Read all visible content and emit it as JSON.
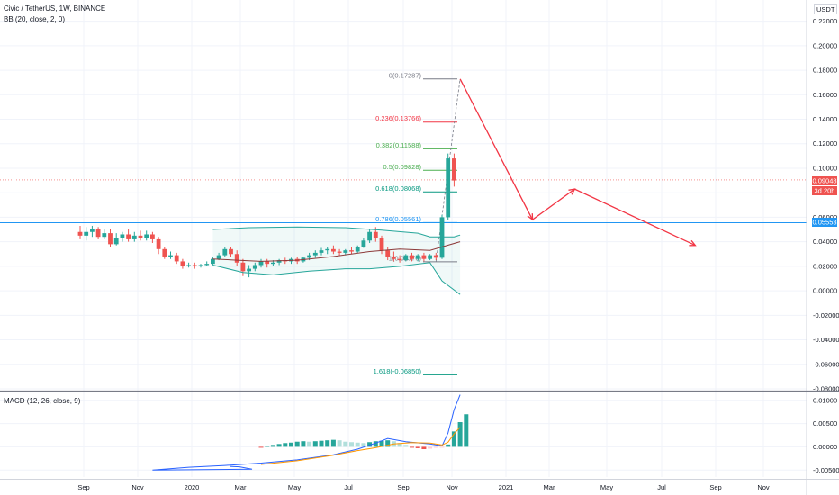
{
  "header": {
    "title": "Civic / TetherUS, 1W, BINANCE",
    "indicator": "BB (20, close, 2, 0)",
    "macd": "MACD (12, 26, close, 9)",
    "currency": "USDT"
  },
  "price_badges": {
    "current": "0.09048",
    "countdown": "3d 20h",
    "line": "0.05553"
  },
  "colors": {
    "up": "#26a69a",
    "down": "#ef5350",
    "horizontal": "#2196f3",
    "projection": "#f23645",
    "bb_basis": "#8d3a3a",
    "bb_band": "#26a69a",
    "macd_line": "#2962ff",
    "signal_line": "#ff9800"
  },
  "chart_data": {
    "type": "candlestick",
    "x_ticks": [
      "Sep",
      "Nov",
      "2020",
      "Mar",
      "May",
      "Jul",
      "Sep",
      "Nov",
      "2021",
      "Mar",
      "May",
      "Jul",
      "Sep",
      "Nov"
    ],
    "price_axis": {
      "ylim": [
        -0.08,
        0.23
      ],
      "ticks": [
        "0.22000",
        "0.20000",
        "0.18000",
        "0.16000",
        "0.14000",
        "0.12000",
        "0.10000",
        "0.08000",
        "0.06000",
        "0.04000",
        "0.02000",
        "0.00000",
        "-0.02000",
        "-0.04000",
        "-0.06000",
        "-0.08000"
      ]
    },
    "macd_axis": {
      "ylim": [
        -0.0065,
        0.0115
      ],
      "ticks": [
        "0.01000",
        "0.00500",
        "0.00000",
        "-0.00500"
      ]
    },
    "fib_levels": [
      {
        "label": "0(0.17287)",
        "price": 0.17287,
        "color": "#787b86"
      },
      {
        "label": "0.236(0.13766)",
        "price": 0.13766,
        "color": "#f23645"
      },
      {
        "label": "0.382(0.11588)",
        "price": 0.11588,
        "color": "#4caf50"
      },
      {
        "label": "0.5(0.09828)",
        "price": 0.09828,
        "color": "#4caf50"
      },
      {
        "label": "0.618(0.08068)",
        "price": 0.08068,
        "color": "#089981"
      },
      {
        "label": "0.786(0.05561)",
        "price": 0.05561,
        "color": "#2196f3"
      },
      {
        "label": "1(0.02370)",
        "price": 0.0237,
        "color": "#787b86"
      },
      {
        "label": "1.618(-0.06850)",
        "price": -0.0685,
        "color": "#089981"
      }
    ],
    "horizontal_line": 0.05553,
    "candles": [
      [
        0.048,
        0.053,
        0.045,
        0.042
      ],
      [
        0.045,
        0.052,
        0.048,
        0.041
      ],
      [
        0.048,
        0.053,
        0.05,
        0.044
      ],
      [
        0.05,
        0.052,
        0.044,
        0.042
      ],
      [
        0.044,
        0.05,
        0.047,
        0.042
      ],
      [
        0.047,
        0.05,
        0.038,
        0.036
      ],
      [
        0.038,
        0.047,
        0.043,
        0.037
      ],
      [
        0.043,
        0.048,
        0.046,
        0.04
      ],
      [
        0.046,
        0.05,
        0.042,
        0.04
      ],
      [
        0.042,
        0.048,
        0.045,
        0.04
      ],
      [
        0.045,
        0.049,
        0.043,
        0.041
      ],
      [
        0.043,
        0.049,
        0.046,
        0.041
      ],
      [
        0.046,
        0.048,
        0.042,
        0.039
      ],
      [
        0.042,
        0.044,
        0.034,
        0.03
      ],
      [
        0.034,
        0.036,
        0.028,
        0.026
      ],
      [
        0.028,
        0.032,
        0.029,
        0.026
      ],
      [
        0.029,
        0.031,
        0.024,
        0.022
      ],
      [
        0.024,
        0.026,
        0.02,
        0.018
      ],
      [
        0.02,
        0.023,
        0.021,
        0.019
      ],
      [
        0.021,
        0.023,
        0.02,
        0.018
      ],
      [
        0.02,
        0.022,
        0.021,
        0.019
      ],
      [
        0.021,
        0.024,
        0.022,
        0.02
      ],
      [
        0.022,
        0.028,
        0.026,
        0.021
      ],
      [
        0.026,
        0.031,
        0.029,
        0.025
      ],
      [
        0.029,
        0.036,
        0.034,
        0.028
      ],
      [
        0.034,
        0.036,
        0.03,
        0.028
      ],
      [
        0.03,
        0.033,
        0.023,
        0.02
      ],
      [
        0.023,
        0.026,
        0.016,
        0.012
      ],
      [
        0.016,
        0.021,
        0.018,
        0.011
      ],
      [
        0.018,
        0.023,
        0.021,
        0.016
      ],
      [
        0.021,
        0.026,
        0.024,
        0.019
      ],
      [
        0.024,
        0.026,
        0.022,
        0.019
      ],
      [
        0.022,
        0.025,
        0.023,
        0.02
      ],
      [
        0.023,
        0.026,
        0.025,
        0.021
      ],
      [
        0.025,
        0.027,
        0.024,
        0.022
      ],
      [
        0.024,
        0.027,
        0.026,
        0.022
      ],
      [
        0.026,
        0.028,
        0.024,
        0.022
      ],
      [
        0.024,
        0.028,
        0.027,
        0.023
      ],
      [
        0.027,
        0.031,
        0.029,
        0.025
      ],
      [
        0.029,
        0.033,
        0.031,
        0.027
      ],
      [
        0.031,
        0.035,
        0.033,
        0.029
      ],
      [
        0.033,
        0.036,
        0.034,
        0.03
      ],
      [
        0.034,
        0.037,
        0.032,
        0.03
      ],
      [
        0.032,
        0.034,
        0.031,
        0.029
      ],
      [
        0.031,
        0.034,
        0.033,
        0.029
      ],
      [
        0.033,
        0.036,
        0.032,
        0.03
      ],
      [
        0.032,
        0.037,
        0.036,
        0.031
      ],
      [
        0.036,
        0.043,
        0.041,
        0.035
      ],
      [
        0.041,
        0.05,
        0.048,
        0.039
      ],
      [
        0.048,
        0.052,
        0.043,
        0.04
      ],
      [
        0.043,
        0.045,
        0.033,
        0.03
      ],
      [
        0.033,
        0.036,
        0.028,
        0.025
      ],
      [
        0.028,
        0.032,
        0.026,
        0.024
      ],
      [
        0.026,
        0.029,
        0.025,
        0.023
      ],
      [
        0.025,
        0.03,
        0.029,
        0.024
      ],
      [
        0.029,
        0.031,
        0.026,
        0.024
      ],
      [
        0.026,
        0.03,
        0.029,
        0.024
      ],
      [
        0.029,
        0.031,
        0.026,
        0.024
      ],
      [
        0.026,
        0.03,
        0.029,
        0.025
      ],
      [
        0.029,
        0.031,
        0.027,
        0.025
      ],
      [
        0.027,
        0.062,
        0.06,
        0.026
      ],
      [
        0.06,
        0.112,
        0.108,
        0.058
      ],
      [
        0.108,
        0.112,
        0.09,
        0.085
      ]
    ],
    "bb_upper": [
      [
        0.05,
        22
      ],
      [
        0.0515,
        28
      ],
      [
        0.052,
        36
      ],
      [
        0.0515,
        44
      ],
      [
        0.0495,
        50
      ],
      [
        0.047,
        56
      ],
      [
        0.044,
        58
      ],
      [
        0.044,
        62
      ],
      [
        0.0455,
        63
      ]
    ],
    "bb_basis": [
      [
        0.026,
        22
      ],
      [
        0.025,
        26
      ],
      [
        0.024,
        30
      ],
      [
        0.025,
        36
      ],
      [
        0.028,
        42
      ],
      [
        0.032,
        48
      ],
      [
        0.034,
        53
      ],
      [
        0.033,
        58
      ],
      [
        0.04,
        63
      ]
    ],
    "bb_lower": [
      [
        0.021,
        22
      ],
      [
        0.015,
        27
      ],
      [
        0.013,
        32
      ],
      [
        0.016,
        38
      ],
      [
        0.018,
        44
      ],
      [
        0.018,
        48
      ],
      [
        0.02,
        53
      ],
      [
        0.023,
        58
      ],
      [
        0.008,
        60
      ],
      [
        -0.003,
        63
      ]
    ],
    "macd_histogram": [
      [
        -0.0001,
        0.0002,
        0.0004,
        0.0006,
        0.0008,
        0.0009,
        0.0011,
        0.0012,
        0.0011,
        0.0012,
        0.0013,
        0.0014,
        0.0015,
        0.0014,
        0.0011,
        0.001,
        0.0009,
        0.0008,
        0.001,
        0.0012,
        0.0013,
        0.0014,
        0.0012,
        0.0008,
        0.0004,
        -0.0001,
        -0.0003,
        -0.0005,
        -0.0004,
        -0.0002,
        -0.0001,
        0.0005,
        0.0033,
        0.0053,
        0.007
      ],
      [
        30
      ]
    ],
    "macd_line": [
      [
        -0.0042,
        0
      ],
      [
        -0.0043,
        3
      ],
      [
        -0.0048,
        7
      ],
      [
        -0.005,
        12
      ],
      [
        -0.0044,
        18
      ],
      [
        -0.004,
        24
      ],
      [
        -0.0035,
        30
      ],
      [
        -0.0028,
        36
      ],
      [
        -0.0017,
        42
      ],
      [
        -0.0005,
        46
      ],
      [
        0.0008,
        49
      ],
      [
        0.0018,
        51
      ],
      [
        0.0011,
        54
      ],
      [
        0.0006,
        58
      ],
      [
        0.0002,
        60
      ],
      [
        0.003,
        61
      ],
      [
        0.008,
        62
      ],
      [
        0.0112,
        63
      ]
    ],
    "signal_line": [
      [
        -0.0038,
        30
      ],
      [
        -0.003,
        36
      ],
      [
        -0.0018,
        42
      ],
      [
        -0.0008,
        46
      ],
      [
        -0.0002,
        49
      ],
      [
        0.0006,
        52
      ],
      [
        0.0009,
        55
      ],
      [
        0.0008,
        58
      ],
      [
        0.0004,
        60
      ],
      [
        0.001,
        61
      ],
      [
        0.0028,
        62
      ],
      [
        0.0042,
        63
      ]
    ],
    "projection_path": [
      [
        0.17287,
        63
      ],
      [
        0.058,
        75
      ],
      [
        0.083,
        82
      ],
      [
        0.037,
        102
      ]
    ]
  }
}
